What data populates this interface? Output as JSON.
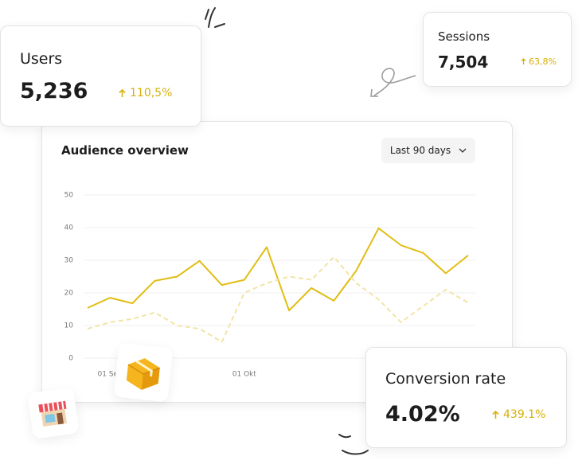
{
  "users_card": {
    "label": "Users",
    "value": "5,236",
    "change": "110,5%"
  },
  "sessions_card": {
    "label": "Sessions",
    "value": "7,504",
    "change": "63,8%"
  },
  "conversion_card": {
    "label": "Conversion rate",
    "value": "4.02%",
    "change": "439.1%"
  },
  "filter": "Last 90 days",
  "chart_data": {
    "type": "line",
    "title": "Audience overview",
    "categories": [
      null,
      "01 Sep",
      null,
      null,
      null,
      null,
      null,
      "01 Okt",
      null,
      null,
      null,
      null,
      null,
      null,
      null,
      null,
      null,
      null
    ],
    "series": [
      {
        "color": "#e2bd14",
        "dashed": false,
        "values": [
          15.4,
          18.5,
          16.8,
          23.7,
          25,
          29.8,
          22.4,
          24,
          34,
          14.6,
          21.5,
          17.6,
          26.8,
          39.8,
          34.6,
          32.2,
          26,
          31.5
        ]
      },
      {
        "color": "#f2e4a6",
        "dashed": true,
        "values": [
          9,
          11,
          12,
          14,
          10,
          9,
          5,
          20,
          23,
          25,
          24,
          31,
          23,
          18,
          11,
          16,
          21,
          17
        ]
      }
    ],
    "ylim": [
      0,
      50
    ],
    "yticks": [
      0,
      10,
      20,
      30,
      40,
      50
    ],
    "grid": true
  }
}
